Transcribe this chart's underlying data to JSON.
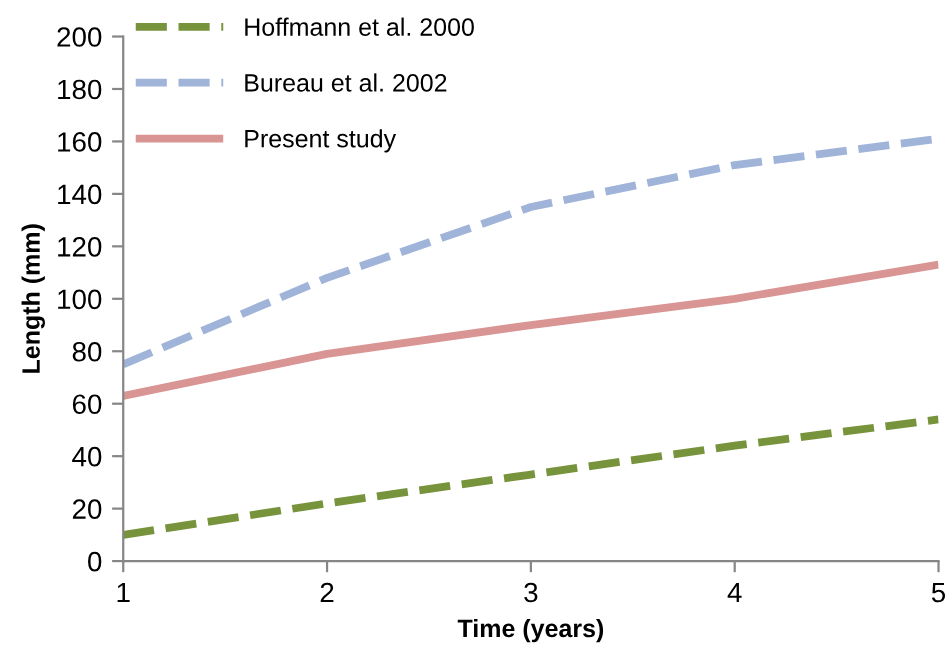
{
  "chart_data": {
    "type": "line",
    "xlabel": "Time (years)",
    "ylabel": "Length (mm)",
    "x": [
      1,
      2,
      3,
      4,
      5
    ],
    "series": [
      {
        "name": "Hoffmann et al. 2000",
        "color": "#77933c",
        "line_style": "dashed",
        "values": [
          10,
          22,
          33,
          44,
          54
        ]
      },
      {
        "name": "Bureau et al. 2002",
        "color": "#9fb4d8",
        "line_style": "dashed",
        "values": [
          75,
          108,
          135,
          151,
          161
        ]
      },
      {
        "name": "Present study",
        "color": "#d99594",
        "line_style": "solid",
        "values": [
          63,
          79,
          90,
          100,
          113
        ]
      }
    ],
    "xlim": [
      1,
      5
    ],
    "xticks": [
      1,
      2,
      3,
      4,
      5
    ],
    "ylim": [
      0,
      200
    ],
    "yticks": [
      0,
      20,
      40,
      60,
      80,
      100,
      120,
      140,
      160,
      180,
      200
    ],
    "grid": false,
    "legend": "top left",
    "marker": "none"
  }
}
